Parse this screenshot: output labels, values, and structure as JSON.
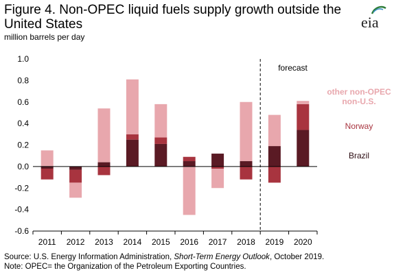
{
  "header": {
    "title": "Figure 4. Non-OPEC liquid fuels supply growth outside the United States",
    "units": "million barrels per day"
  },
  "logo": {
    "text": "eia"
  },
  "footer": {
    "source_pre": "Source: U.S. Energy Information Administration, ",
    "source_italic": "Short-Term Energy Outlook",
    "source_post": ", October 2019.",
    "note": "Note: OPEC= the Organization of the Petroleum Exporting Countries."
  },
  "chart_data": {
    "type": "bar",
    "stacked": true,
    "categories": [
      "2011",
      "2012",
      "2013",
      "2014",
      "2015",
      "2016",
      "2017",
      "2018",
      "2019",
      "2020"
    ],
    "series": [
      {
        "name": "Brazil",
        "color": "#5a1a24",
        "values": [
          -0.02,
          -0.03,
          0.04,
          0.25,
          0.21,
          0.05,
          0.12,
          0.05,
          0.19,
          0.34
        ]
      },
      {
        "name": "Norway",
        "color": "#a8343f",
        "values": [
          -0.1,
          -0.12,
          -0.08,
          0.05,
          0.06,
          0.04,
          -0.02,
          -0.12,
          -0.15,
          0.24
        ]
      },
      {
        "name": "other non-OPEC non-U.S.",
        "color": "#e8a7ad",
        "values": [
          0.15,
          -0.14,
          0.5,
          0.51,
          0.31,
          -0.45,
          -0.18,
          0.55,
          0.29,
          0.03
        ]
      }
    ],
    "legend_labels": [
      {
        "series": 2,
        "lines": [
          "other non-OPEC",
          "non-U.S."
        ]
      },
      {
        "series": 1,
        "lines": [
          "Norway"
        ]
      },
      {
        "series": 0,
        "lines": [
          "Brazil"
        ]
      }
    ],
    "ylim": [
      -0.6,
      1.0
    ],
    "yticks": [
      "1.0",
      "0.8",
      "0.6",
      "0.4",
      "0.2",
      "0.0",
      "-0.2",
      "-0.4",
      "-0.6"
    ],
    "ytick_values": [
      1.0,
      0.8,
      0.6,
      0.4,
      0.2,
      0.0,
      -0.2,
      -0.4,
      -0.6
    ],
    "forecast_label": "forecast",
    "forecast_start_category": "2019",
    "grid": false
  }
}
